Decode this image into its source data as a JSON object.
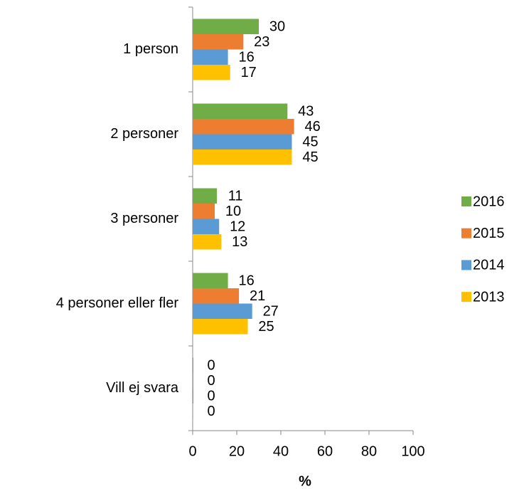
{
  "chart_data": {
    "type": "barh",
    "xlabel": "%",
    "categories": [
      "1 person",
      "2 personer",
      "3 personer",
      "4 personer eller fler",
      "Vill ej svara"
    ],
    "series": [
      {
        "name": "2016",
        "color": "#70ad47",
        "values": [
          30,
          43,
          11,
          16,
          0
        ]
      },
      {
        "name": "2015",
        "color": "#ed7d31",
        "values": [
          23,
          46,
          10,
          21,
          0
        ]
      },
      {
        "name": "2014",
        "color": "#5b9bd5",
        "values": [
          16,
          45,
          12,
          27,
          0
        ]
      },
      {
        "name": "2013",
        "color": "#ffc000",
        "values": [
          17,
          45,
          13,
          25,
          0
        ]
      }
    ],
    "xlim": [
      0,
      100
    ],
    "xticks": [
      0,
      20,
      40,
      60,
      80,
      100
    ],
    "legend": "right"
  }
}
